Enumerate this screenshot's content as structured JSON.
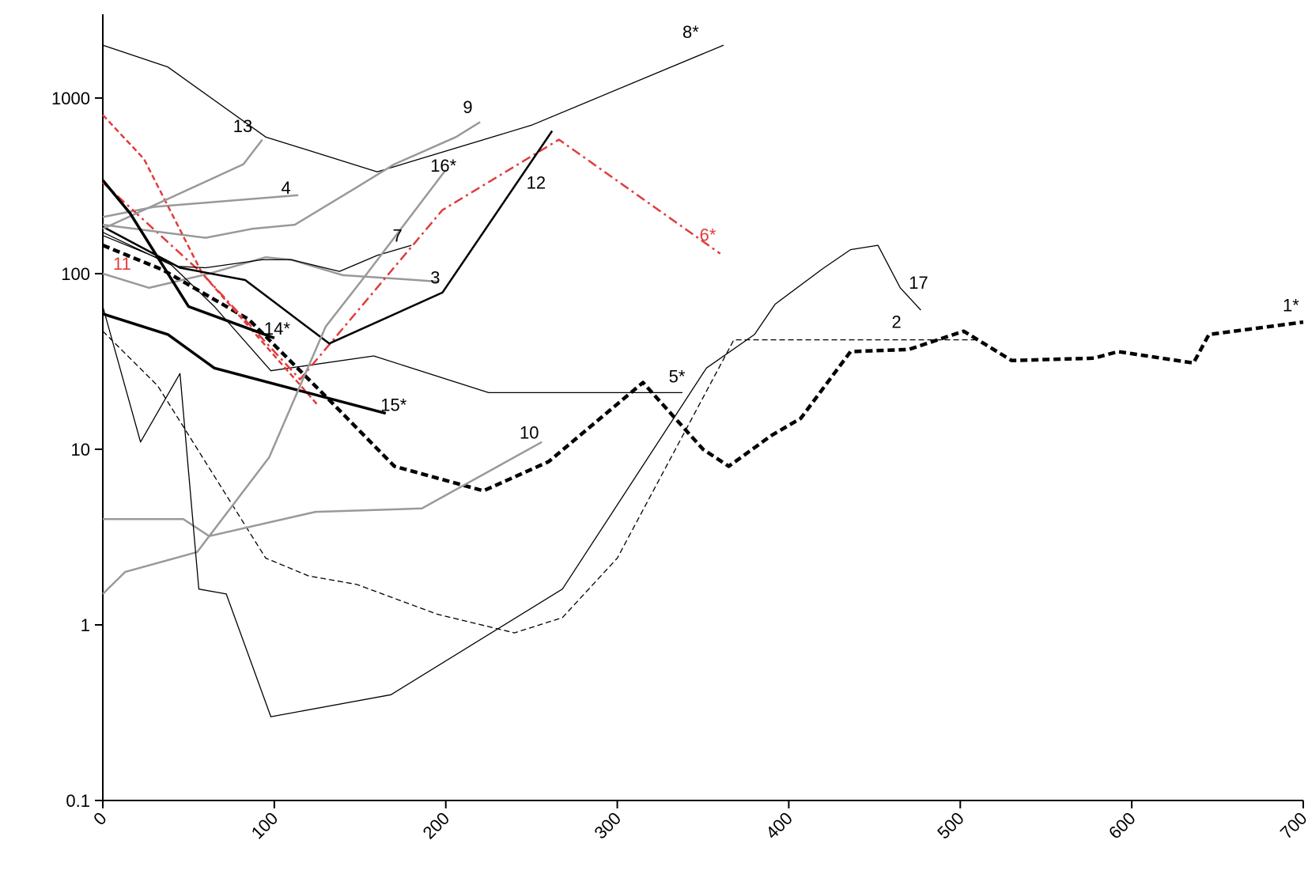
{
  "chart_data": {
    "type": "line",
    "title": "",
    "xlabel": "",
    "ylabel": "",
    "xlim": [
      0,
      700
    ],
    "ylim": [
      0.1,
      3000
    ],
    "y_scale": "log",
    "grid": false,
    "legend": "none",
    "x_ticks": [
      0,
      100,
      200,
      300,
      400,
      500,
      600,
      700
    ],
    "x_tick_labels": [
      "0",
      "100",
      "200",
      "300",
      "400",
      "500",
      "600",
      "700"
    ],
    "y_ticks": [
      0.1,
      1,
      10,
      100,
      1000
    ],
    "y_tick_labels": [
      "0.1",
      "1",
      "10",
      "100",
      "1000"
    ],
    "series": [
      {
        "name": "1*",
        "color": "#000000",
        "width": 4.5,
        "dash": "dot",
        "label_at": [
          688,
          61
        ],
        "points": [
          [
            0,
            145
          ],
          [
            35,
            105
          ],
          [
            85,
            55
          ],
          [
            130,
            20
          ],
          [
            170,
            8
          ],
          [
            222,
            5.8
          ],
          [
            260,
            8.5
          ],
          [
            315,
            24
          ],
          [
            350,
            10
          ],
          [
            365,
            8
          ],
          [
            390,
            12
          ],
          [
            407,
            15
          ],
          [
            436,
            36
          ],
          [
            470,
            37
          ],
          [
            502,
            47
          ],
          [
            530,
            32
          ],
          [
            578,
            33
          ],
          [
            592,
            36
          ],
          [
            636,
            31
          ],
          [
            645,
            45
          ],
          [
            700,
            53
          ]
        ]
      },
      {
        "name": "2",
        "color": "#000000",
        "width": 1.3,
        "dash": "dash",
        "label_at": [
          460,
          49
        ],
        "points": [
          [
            0,
            47
          ],
          [
            32,
            23
          ],
          [
            95,
            2.4
          ],
          [
            120,
            1.9
          ],
          [
            148,
            1.7
          ],
          [
            195,
            1.15
          ],
          [
            240,
            0.9
          ],
          [
            268,
            1.1
          ],
          [
            300,
            2.4
          ],
          [
            368,
            42
          ],
          [
            510,
            42
          ]
        ]
      },
      {
        "name": "3",
        "color": "#999999",
        "width": 2.5,
        "dash": "solid",
        "label_at": [
          191,
          88
        ],
        "points": [
          [
            0,
            100
          ],
          [
            27,
            83
          ],
          [
            62,
            100
          ],
          [
            95,
            124
          ],
          [
            110,
            120
          ],
          [
            140,
            98
          ],
          [
            175,
            93
          ],
          [
            196,
            90
          ]
        ]
      },
      {
        "name": "4",
        "color": "#999999",
        "width": 2.5,
        "dash": "solid",
        "label_at": [
          104,
          285
        ],
        "points": [
          [
            0,
            210
          ],
          [
            30,
            240
          ],
          [
            114,
            280
          ]
        ]
      },
      {
        "name": "5*",
        "color": "#000000",
        "width": 1.3,
        "dash": "solid",
        "label_at": [
          330,
          24
        ],
        "points": [
          [
            0,
            172
          ],
          [
            40,
            112
          ],
          [
            65,
            65
          ],
          [
            98,
            28
          ],
          [
            158,
            34
          ],
          [
            225,
            21
          ],
          [
            338,
            21
          ]
        ]
      },
      {
        "name": "6*",
        "color": "#e03c3c",
        "width": 2.5,
        "dash": "dashdot",
        "label_at": [
          348,
          154
        ],
        "points": [
          [
            0,
            330
          ],
          [
            58,
            100
          ],
          [
            115,
            25
          ],
          [
            198,
            230
          ],
          [
            266,
            580
          ],
          [
            360,
            130
          ]
        ]
      },
      {
        "name": "7",
        "color": "#000000",
        "width": 1.3,
        "dash": "solid",
        "label_at": [
          169,
          152
        ],
        "points": [
          [
            0,
            165
          ],
          [
            44,
            110
          ],
          [
            60,
            108
          ],
          [
            93,
            120
          ],
          [
            110,
            120
          ],
          [
            138,
            103
          ],
          [
            160,
            127
          ],
          [
            180,
            145
          ]
        ]
      },
      {
        "name": "8*",
        "color": "#000000",
        "width": 1.3,
        "dash": "solid",
        "label_at": [
          338,
          2200
        ],
        "points": [
          [
            0,
            2000
          ],
          [
            38,
            1500
          ],
          [
            95,
            600
          ],
          [
            160,
            380
          ],
          [
            250,
            700
          ],
          [
            362,
            2000
          ]
        ]
      },
      {
        "name": "9",
        "color": "#999999",
        "width": 2.5,
        "dash": "solid",
        "label_at": [
          210,
          820
        ],
        "points": [
          [
            0,
            190
          ],
          [
            60,
            160
          ],
          [
            87,
            180
          ],
          [
            112,
            190
          ],
          [
            148,
            310
          ],
          [
            170,
            420
          ],
          [
            206,
            600
          ],
          [
            220,
            730
          ]
        ]
      },
      {
        "name": "10",
        "color": "#999999",
        "width": 2.5,
        "dash": "solid",
        "label_at": [
          243,
          11.5
        ],
        "points": [
          [
            0,
            4
          ],
          [
            47,
            4
          ],
          [
            62,
            3.2
          ],
          [
            124,
            4.4
          ],
          [
            186,
            4.6
          ],
          [
            256,
            11
          ]
        ]
      },
      {
        "name": "11",
        "color": "#e03c3c",
        "width": 2.5,
        "dash": "dash",
        "label_at": [
          6,
          105
        ],
        "points": [
          [
            0,
            800
          ],
          [
            24,
            450
          ],
          [
            58,
            100
          ],
          [
            125,
            18
          ]
        ]
      },
      {
        "name": "12",
        "color": "#000000",
        "width": 2.5,
        "dash": "solid",
        "label_at": [
          247,
          305
        ],
        "points": [
          [
            0,
            185
          ],
          [
            45,
            108
          ],
          [
            83,
            92
          ],
          [
            132,
            40
          ],
          [
            198,
            78
          ],
          [
            262,
            650
          ]
        ]
      },
      {
        "name": "13",
        "color": "#999999",
        "width": 2.5,
        "dash": "solid",
        "label_at": [
          76,
          640
        ],
        "points": [
          [
            0,
            180
          ],
          [
            82,
            420
          ],
          [
            93,
            580
          ]
        ]
      },
      {
        "name": "14*",
        "color": "#000000",
        "width": 3.5,
        "dash": "solid",
        "label_at": [
          94,
          45
        ],
        "points": [
          [
            0,
            340
          ],
          [
            16,
            220
          ],
          [
            50,
            65
          ],
          [
            100,
            43
          ]
        ]
      },
      {
        "name": "15*",
        "color": "#000000",
        "width": 3.5,
        "dash": "solid",
        "label_at": [
          162,
          16.5
        ],
        "points": [
          [
            0,
            59
          ],
          [
            38,
            45
          ],
          [
            65,
            29
          ],
          [
            165,
            16
          ]
        ]
      },
      {
        "name": "16*",
        "color": "#999999",
        "width": 2.5,
        "dash": "solid",
        "label_at": [
          191,
          380
        ],
        "points": [
          [
            0,
            1.5
          ],
          [
            13,
            2
          ],
          [
            55,
            2.6
          ],
          [
            97,
            9
          ],
          [
            130,
            50
          ],
          [
            153,
            97
          ],
          [
            200,
            390
          ]
        ]
      },
      {
        "name": "17",
        "color": "#000000",
        "width": 1.3,
        "dash": "solid",
        "label_at": [
          470,
          82
        ],
        "points": [
          [
            0,
            65
          ],
          [
            22,
            11
          ],
          [
            45,
            27
          ],
          [
            56,
            1.6
          ],
          [
            72,
            1.5
          ],
          [
            98,
            0.3
          ],
          [
            168,
            0.4
          ],
          [
            268,
            1.6
          ],
          [
            352,
            29
          ],
          [
            380,
            45
          ],
          [
            392,
            67
          ],
          [
            420,
            107
          ],
          [
            436,
            137
          ],
          [
            452,
            145
          ],
          [
            465,
            83
          ],
          [
            477,
            62
          ]
        ]
      }
    ]
  }
}
